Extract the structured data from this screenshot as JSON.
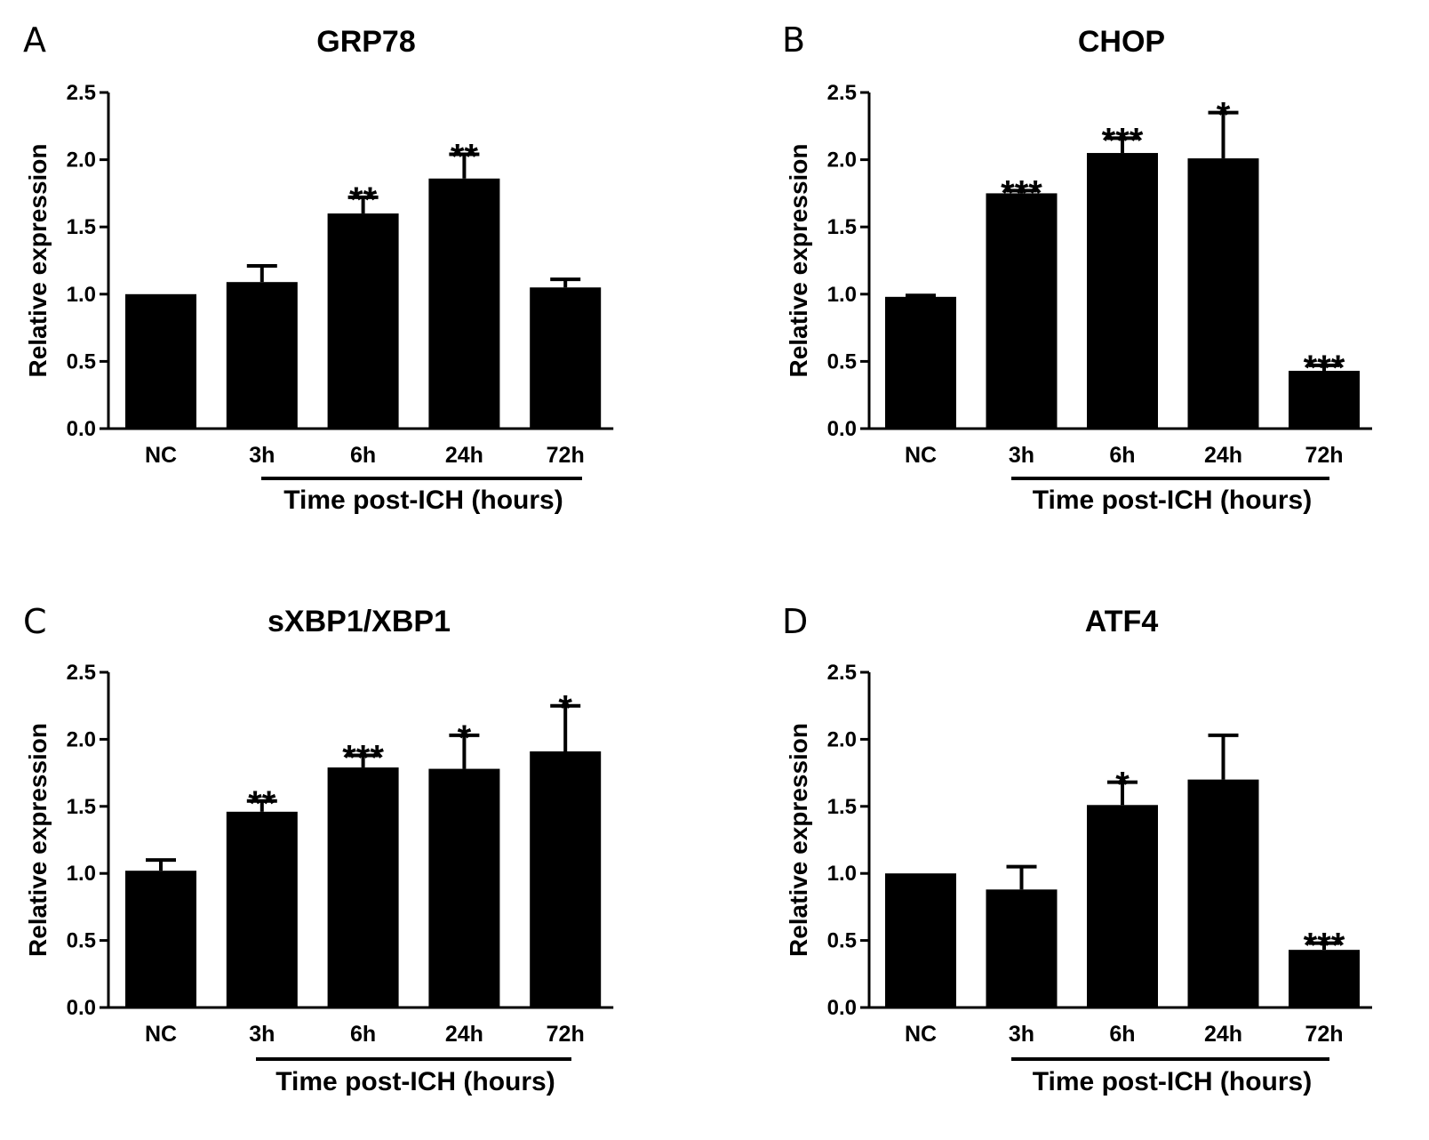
{
  "chart_data": [
    {
      "panel": "A",
      "type": "bar",
      "title": "GRP78",
      "ylabel": "Relative expression",
      "xlabel": "Time post-ICH (hours)",
      "categories": [
        "NC",
        "3h",
        "6h",
        "24h",
        "72h"
      ],
      "values": [
        1.0,
        1.09,
        1.6,
        1.86,
        1.05
      ],
      "errors": [
        0.0,
        0.12,
        0.12,
        0.18,
        0.06
      ],
      "significance": [
        "",
        "",
        "**",
        "**",
        ""
      ],
      "ylim": [
        0,
        2.5
      ],
      "yticks": [
        "0.0",
        "0.5",
        "1.0",
        "1.5",
        "2.0",
        "2.5"
      ],
      "color": "#000000"
    },
    {
      "panel": "B",
      "type": "bar",
      "title": "CHOP",
      "ylabel": "Relative expression",
      "xlabel": "Time post-ICH (hours)",
      "categories": [
        "NC",
        "3h",
        "6h",
        "24h",
        "72h"
      ],
      "values": [
        0.98,
        1.75,
        2.05,
        2.01,
        0.43
      ],
      "errors": [
        0.01,
        0.02,
        0.11,
        0.34,
        0.04
      ],
      "significance": [
        "",
        "***",
        "***",
        "*",
        "***"
      ],
      "ylim": [
        0,
        2.5
      ],
      "yticks": [
        "0.0",
        "0.5",
        "1.0",
        "1.5",
        "2.0",
        "2.5"
      ],
      "color": "#000000"
    },
    {
      "panel": "C",
      "type": "bar",
      "title": "sXBP1/XBP1",
      "ylabel": "Relative expression",
      "xlabel": "Time post-ICH (hours)",
      "categories": [
        "NC",
        "3h",
        "6h",
        "24h",
        "72h"
      ],
      "values": [
        1.02,
        1.46,
        1.79,
        1.78,
        1.91
      ],
      "errors": [
        0.08,
        0.08,
        0.09,
        0.25,
        0.34
      ],
      "significance": [
        "",
        "**",
        "***",
        "*",
        "*"
      ],
      "ylim": [
        0,
        2.5
      ],
      "yticks": [
        "0.0",
        "0.5",
        "1.0",
        "1.5",
        "2.0",
        "2.5"
      ],
      "color": "#000000"
    },
    {
      "panel": "D",
      "type": "bar",
      "title": "ATF4",
      "ylabel": "Relative expression",
      "xlabel": "Time post-ICH (hours)",
      "categories": [
        "NC",
        "3h",
        "6h",
        "24h",
        "72h"
      ],
      "values": [
        1.0,
        0.88,
        1.51,
        1.7,
        0.43
      ],
      "errors": [
        0.0,
        0.17,
        0.17,
        0.33,
        0.05
      ],
      "significance": [
        "",
        "",
        "*",
        "",
        "***"
      ],
      "ylim": [
        0,
        2.5
      ],
      "yticks": [
        "0.0",
        "0.5",
        "1.0",
        "1.5",
        "2.0",
        "2.5"
      ],
      "color": "#000000"
    }
  ]
}
